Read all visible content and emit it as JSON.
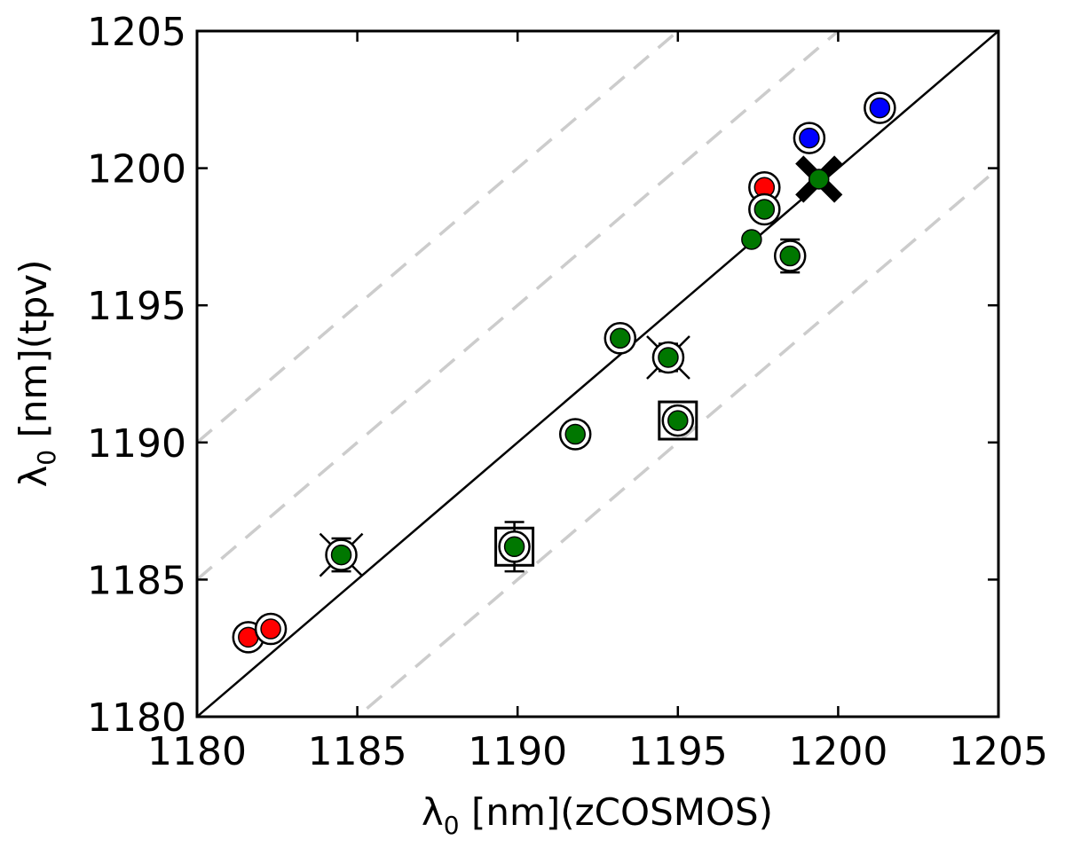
{
  "chart_data": {
    "type": "scatter",
    "title": "",
    "xlabel": {
      "symbol": "λ",
      "sub": "0",
      "rest": " [nm](zCOSMOS)"
    },
    "ylabel": {
      "symbol": "λ",
      "sub": "0",
      "rest": " [nm](tpv)"
    },
    "xlim": [
      1180,
      1205
    ],
    "ylim": [
      1180,
      1205
    ],
    "xticks": [
      1180,
      1185,
      1190,
      1195,
      1200,
      1205
    ],
    "yticks": [
      1180,
      1185,
      1190,
      1195,
      1200,
      1205
    ],
    "xtick_labels": [
      "1180",
      "1185",
      "1190",
      "1195",
      "1200",
      "1205"
    ],
    "ytick_labels": [
      "1180",
      "1185",
      "1190",
      "1195",
      "1200",
      "1205"
    ],
    "identity_line": true,
    "dashed_offsets": [
      -5,
      5,
      10
    ],
    "colors": {
      "red": "#ff0000",
      "green": "#007700",
      "blue": "#0000ff",
      "guide": "#cccccc"
    },
    "points": [
      {
        "x": 1181.6,
        "y": 1182.9,
        "color": "red",
        "ring": true
      },
      {
        "x": 1182.3,
        "y": 1183.2,
        "color": "red",
        "ring": true
      },
      {
        "x": 1184.5,
        "y": 1185.9,
        "color": "green",
        "ring": true,
        "err": 0.6,
        "cross": "thin"
      },
      {
        "x": 1189.9,
        "y": 1186.2,
        "color": "green",
        "ring": true,
        "err": 0.9,
        "square": true
      },
      {
        "x": 1191.8,
        "y": 1190.3,
        "color": "green",
        "ring": true
      },
      {
        "x": 1193.2,
        "y": 1193.8,
        "color": "green",
        "ring": true,
        "err": 0.4
      },
      {
        "x": 1194.7,
        "y": 1193.1,
        "color": "green",
        "ring": true,
        "err": 0.5,
        "cross": "thin"
      },
      {
        "x": 1195.0,
        "y": 1190.8,
        "color": "green",
        "ring": true,
        "square": true
      },
      {
        "x": 1197.3,
        "y": 1197.4,
        "color": "green",
        "ring": false
      },
      {
        "x": 1197.7,
        "y": 1199.3,
        "color": "red",
        "ring": true
      },
      {
        "x": 1197.7,
        "y": 1198.5,
        "color": "green",
        "ring": true
      },
      {
        "x": 1198.5,
        "y": 1196.8,
        "color": "green",
        "ring": true,
        "err": 0.6
      },
      {
        "x": 1199.1,
        "y": 1201.1,
        "color": "blue",
        "ring": true
      },
      {
        "x": 1199.4,
        "y": 1199.6,
        "color": "green",
        "ring": false,
        "cross": "thick"
      },
      {
        "x": 1201.3,
        "y": 1202.2,
        "color": "blue",
        "ring": true
      }
    ]
  }
}
